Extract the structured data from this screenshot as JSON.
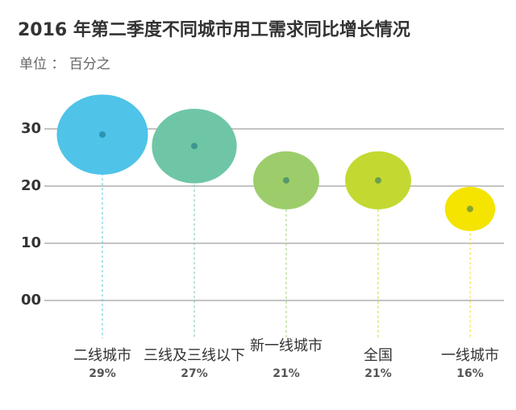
{
  "chart_data": {
    "type": "bubble",
    "title": "2016 年第二季度不同城市用工需求同比增长情况",
    "subtitle": "单位 ： 百分之",
    "categories": [
      "二线城市",
      "三线及三线以下",
      "新一线城市",
      "全国",
      "一线城市"
    ],
    "values": [
      29,
      27,
      21,
      21,
      16
    ],
    "value_labels": [
      "29%",
      "27%",
      "21%",
      "21%",
      "16%"
    ],
    "colors": [
      "#4fc3e8",
      "#6fc6a6",
      "#9dcd6a",
      "#c3d932",
      "#f4e400"
    ],
    "ylim": [
      0,
      30
    ],
    "yticks": [
      {
        "value": 0,
        "label": "00"
      },
      10,
      20,
      30
    ],
    "grid": true
  }
}
